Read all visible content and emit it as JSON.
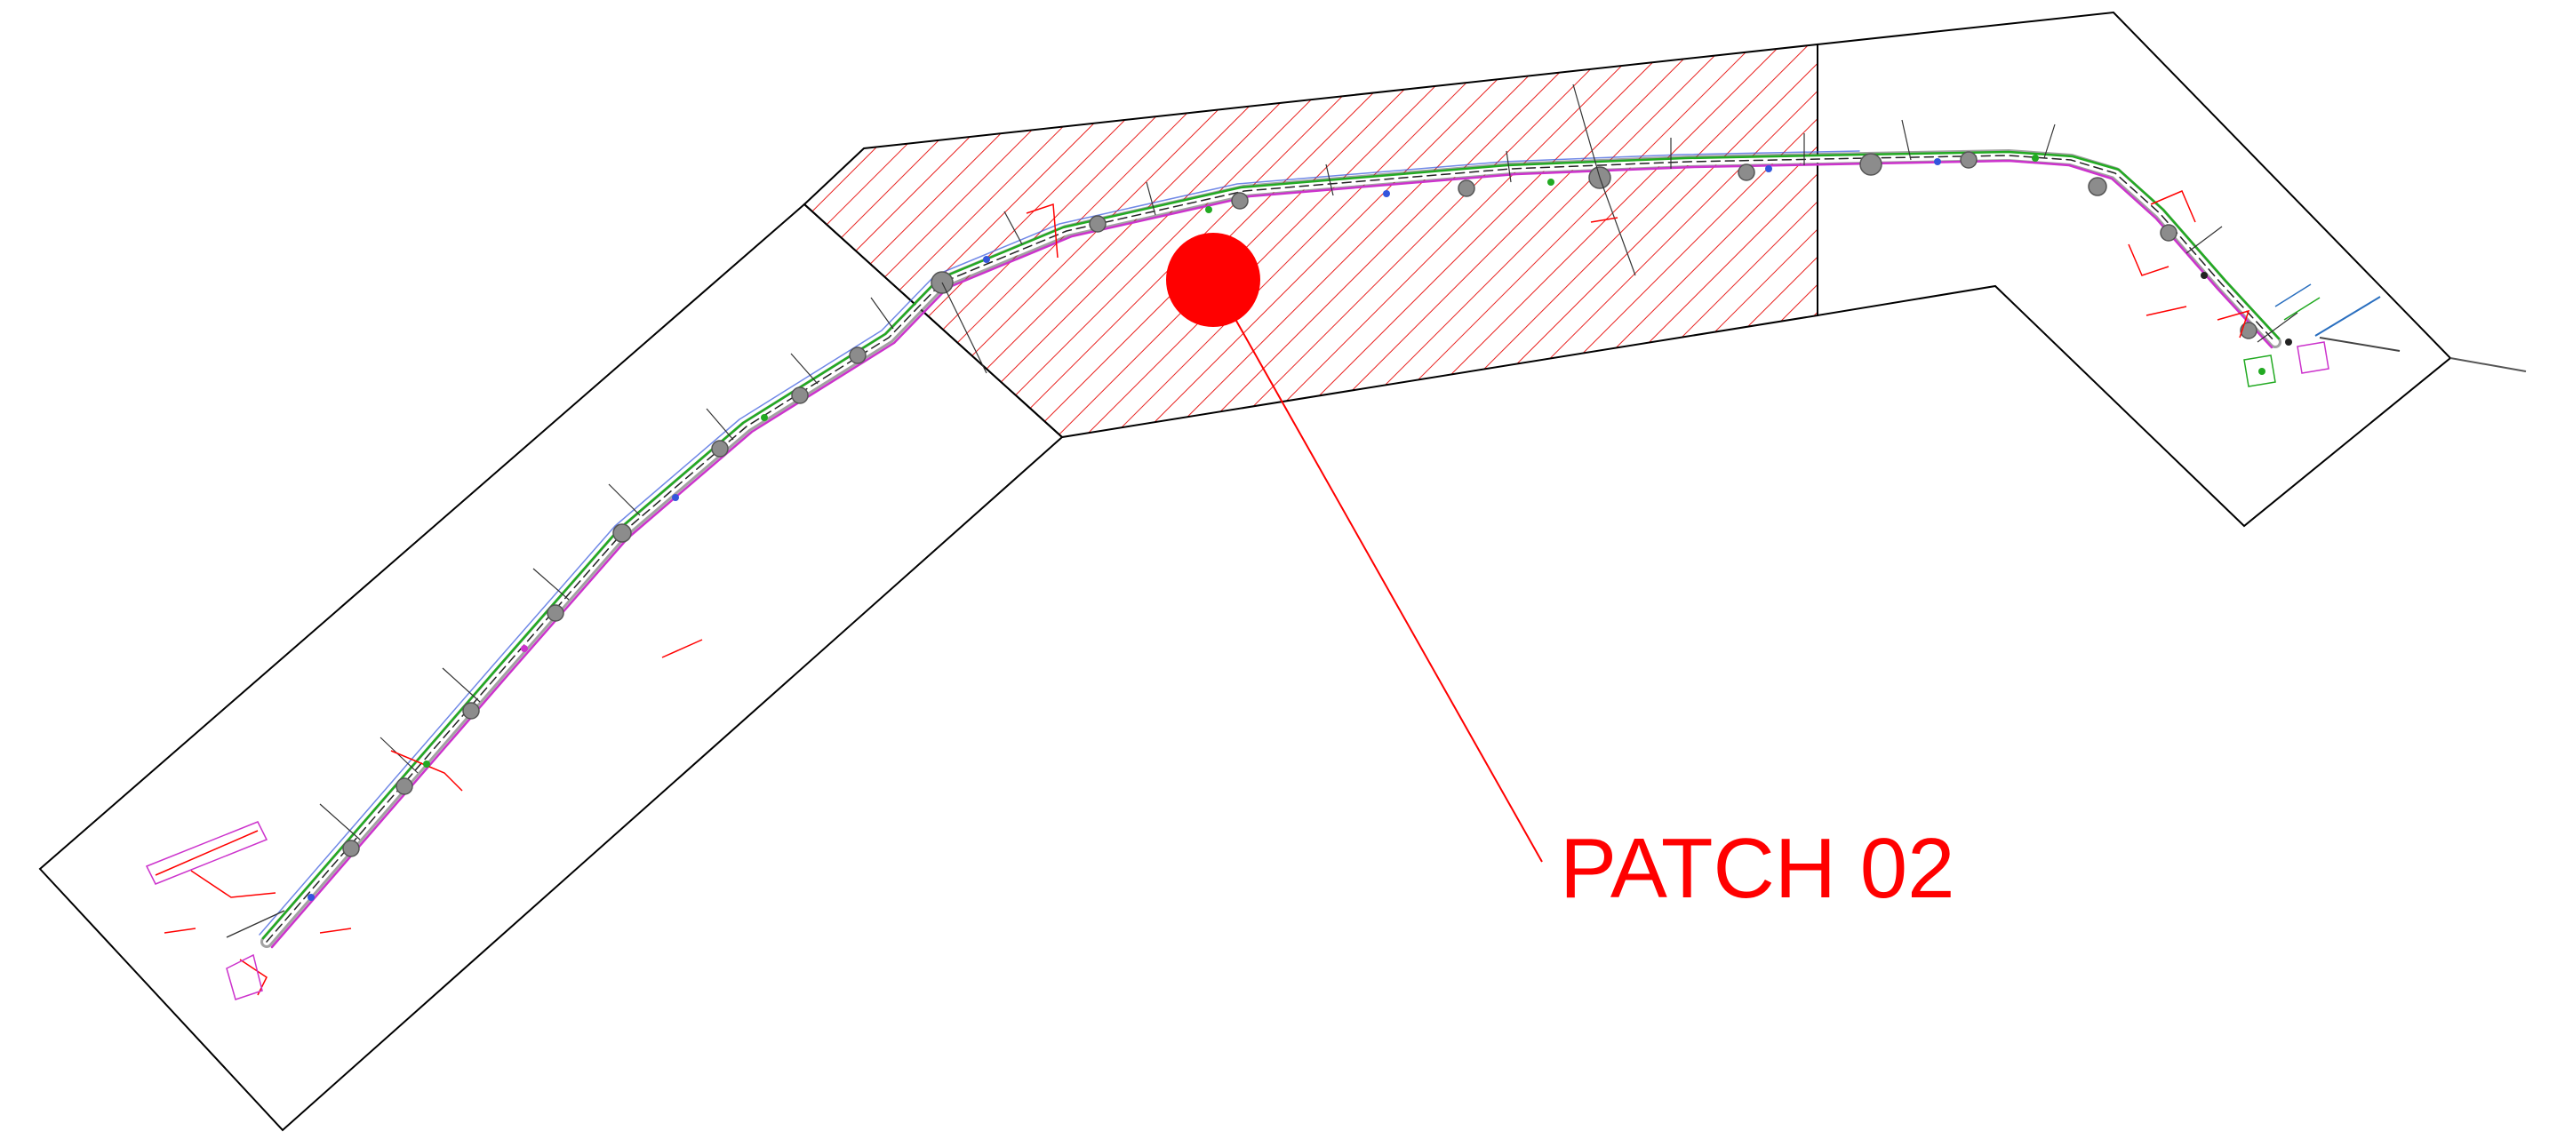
{
  "diagram": {
    "callout": {
      "label": "PATCH 02",
      "color": "#ff0000"
    },
    "colors": {
      "outline": "#000000",
      "hatch": "#e8211f",
      "road_edge": "#666666",
      "road_green": "#22aa22",
      "road_magenta": "#cc33cc",
      "road_blue": "#3355dd",
      "annotation_red": "#ff0000",
      "node": "#888888"
    },
    "regions": [
      "left-sheet",
      "patch-02-hatched-sheet",
      "right-sheet"
    ],
    "icons": [
      "marker-dot-icon",
      "leader-line"
    ]
  }
}
